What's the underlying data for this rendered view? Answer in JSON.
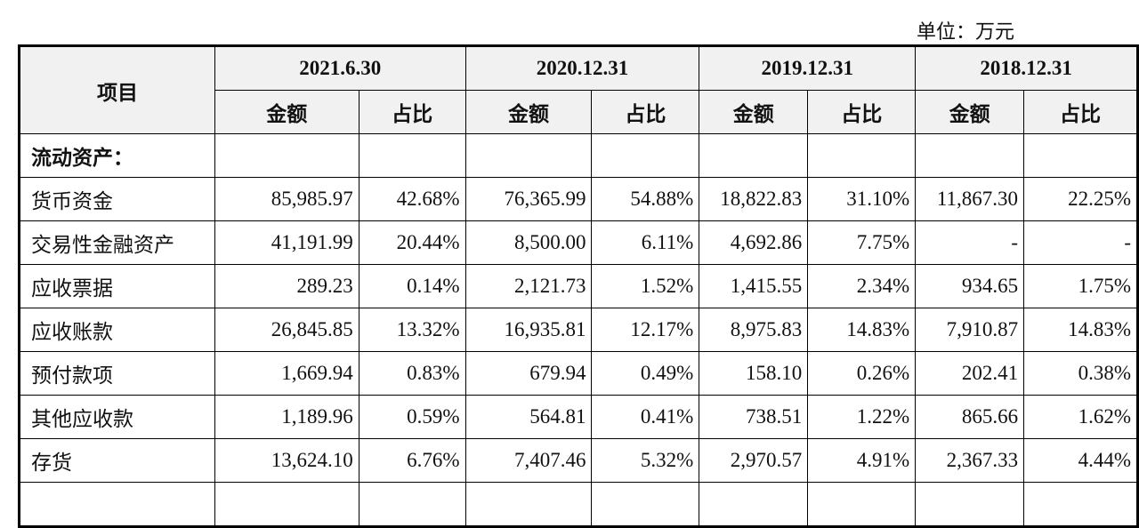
{
  "unit_label": "单位：万元",
  "header": {
    "item": "项目",
    "periods": [
      "2021.6.30",
      "2020.12.31",
      "2019.12.31",
      "2018.12.31"
    ],
    "amount": "金额",
    "ratio": "占比"
  },
  "section_title": "流动资产：",
  "rows": [
    {
      "label": "货币资金",
      "values": [
        "85,985.97",
        "42.68%",
        "76,365.99",
        "54.88%",
        "18,822.83",
        "31.10%",
        "11,867.30",
        "22.25%"
      ]
    },
    {
      "label": "交易性金融资产",
      "values": [
        "41,191.99",
        "20.44%",
        "8,500.00",
        "6.11%",
        "4,692.86",
        "7.75%",
        "-",
        "-"
      ]
    },
    {
      "label": "应收票据",
      "values": [
        "289.23",
        "0.14%",
        "2,121.73",
        "1.52%",
        "1,415.55",
        "2.34%",
        "934.65",
        "1.75%"
      ]
    },
    {
      "label": "应收账款",
      "values": [
        "26,845.85",
        "13.32%",
        "16,935.81",
        "12.17%",
        "8,975.83",
        "14.83%",
        "7,910.87",
        "14.83%"
      ]
    },
    {
      "label": "预付款项",
      "values": [
        "1,669.94",
        "0.83%",
        "679.94",
        "0.49%",
        "158.10",
        "0.26%",
        "202.41",
        "0.38%"
      ]
    },
    {
      "label": "其他应收款",
      "values": [
        "1,189.96",
        "0.59%",
        "564.81",
        "0.41%",
        "738.51",
        "1.22%",
        "865.66",
        "1.62%"
      ]
    },
    {
      "label": "存货",
      "values": [
        "13,624.10",
        "6.76%",
        "7,407.46",
        "5.32%",
        "2,970.57",
        "4.91%",
        "2,367.33",
        "4.44%"
      ]
    }
  ]
}
